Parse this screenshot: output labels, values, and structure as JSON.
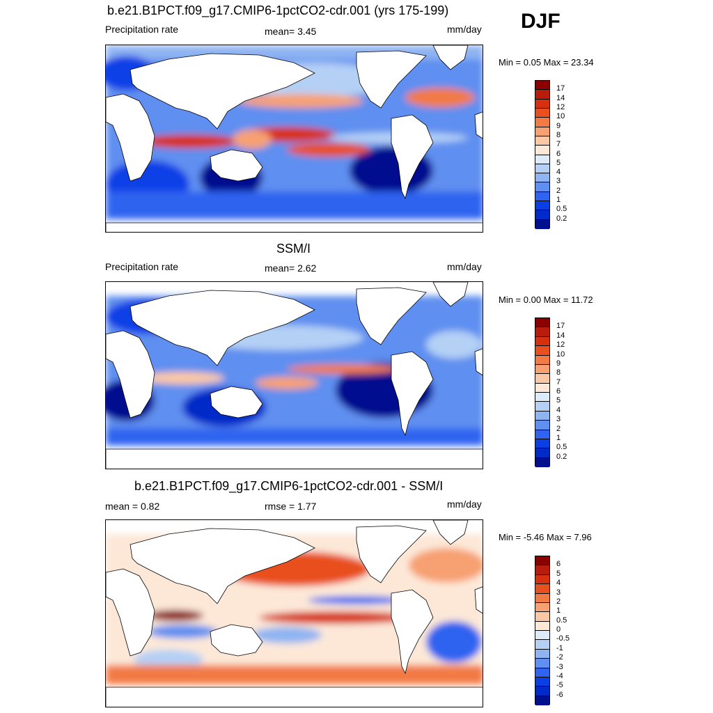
{
  "season": "DJF",
  "panels": [
    {
      "title": "b.e21.B1PCT.f09_g17.CMIP6-1pctCO2-cdr.001 (yrs 175-199)",
      "left_label": "Precipitation rate",
      "center_label": "mean=   3.45",
      "units": "mm/day",
      "minmax": "Min =   0.05 Max =  23.34",
      "levels": [
        "17",
        "14",
        "12",
        "10",
        "9",
        "8",
        "7",
        "6",
        "5",
        "4",
        "3",
        "2",
        "1",
        "0.5",
        "0.2"
      ],
      "colors": [
        "#8b0000",
        "#b71c0c",
        "#d73010",
        "#e8501f",
        "#f27a45",
        "#f7a072",
        "#fbc8a5",
        "#fde8d8",
        "#dceaf9",
        "#b4d0f5",
        "#8fb4f2",
        "#5f8ff0",
        "#2f63f0",
        "#0a3fe6",
        "#002bc8",
        "#00108f"
      ]
    },
    {
      "title": "SSM/I",
      "left_label": "Precipitation rate",
      "center_label": "mean=   2.62",
      "units": "mm/day",
      "minmax": "Min =   0.00 Max =  11.72",
      "levels": [
        "17",
        "14",
        "12",
        "10",
        "9",
        "8",
        "7",
        "6",
        "5",
        "4",
        "3",
        "2",
        "1",
        "0.5",
        "0.2"
      ],
      "colors": [
        "#8b0000",
        "#b71c0c",
        "#d73010",
        "#e8501f",
        "#f27a45",
        "#f7a072",
        "#fbc8a5",
        "#fde8d8",
        "#dceaf9",
        "#b4d0f5",
        "#8fb4f2",
        "#5f8ff0",
        "#2f63f0",
        "#0a3fe6",
        "#002bc8",
        "#00108f"
      ]
    },
    {
      "title": "b.e21.B1PCT.f09_g17.CMIP6-1pctCO2-cdr.001 - SSM/I",
      "left_label": "mean =   0.82",
      "center_label": "rmse =   1.77",
      "units": "mm/day",
      "minmax": "Min =  -5.46 Max =   7.96",
      "levels": [
        "6",
        "5",
        "4",
        "3",
        "2",
        "1",
        "0.5",
        "0",
        "-0.5",
        "-1",
        "-2",
        "-3",
        "-4",
        "-5",
        "-6"
      ],
      "colors": [
        "#8b0000",
        "#b71c0c",
        "#d73010",
        "#e8501f",
        "#f27a45",
        "#f7a072",
        "#fbc8a5",
        "#fde8d8",
        "#dceaf9",
        "#b4d0f5",
        "#8fb4f2",
        "#5f8ff0",
        "#2f63f0",
        "#0a3fe6",
        "#002bc8",
        "#00108f"
      ]
    }
  ]
}
